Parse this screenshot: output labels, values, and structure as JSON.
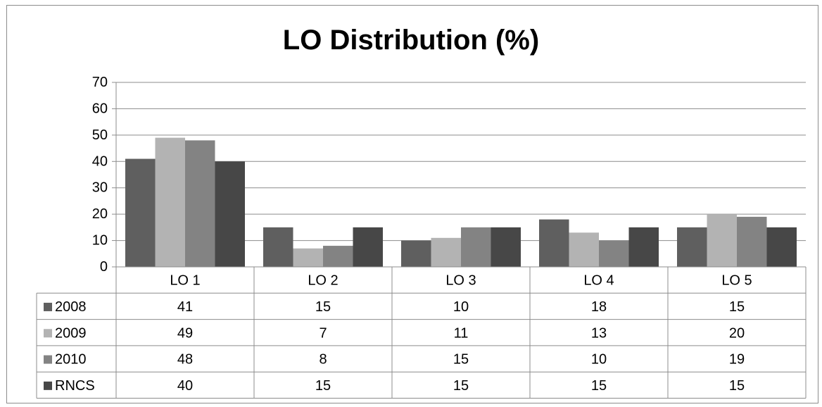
{
  "chart_data": {
    "type": "bar",
    "title": "LO Distribution (%)",
    "xlabel": "",
    "ylabel": "",
    "categories": [
      "LO 1",
      "LO 2",
      "LO 3",
      "LO 4",
      "LO 5"
    ],
    "ylim": [
      0,
      70
    ],
    "yticks": [
      "0",
      "10",
      "20",
      "30",
      "40",
      "50",
      "60",
      "70"
    ],
    "grid": true,
    "legend": "data-table",
    "series": [
      {
        "name": "2008",
        "color": "#5f5f5f",
        "values": [
          41,
          15,
          10,
          18,
          15
        ],
        "labels": [
          "41",
          "15",
          "10",
          "18",
          "15"
        ]
      },
      {
        "name": "2009",
        "color": "#b3b3b3",
        "values": [
          49,
          7,
          11,
          13,
          20
        ],
        "labels": [
          "49",
          "7",
          "11",
          "13",
          "20"
        ]
      },
      {
        "name": "2010",
        "color": "#838383",
        "values": [
          48,
          8,
          15,
          10,
          19
        ],
        "labels": [
          "48",
          "8",
          "15",
          "10",
          "19"
        ]
      },
      {
        "name": "RNCS",
        "color": "#474747",
        "values": [
          40,
          15,
          15,
          15,
          15
        ],
        "labels": [
          "40",
          "15",
          "15",
          "15",
          "15"
        ]
      }
    ]
  }
}
